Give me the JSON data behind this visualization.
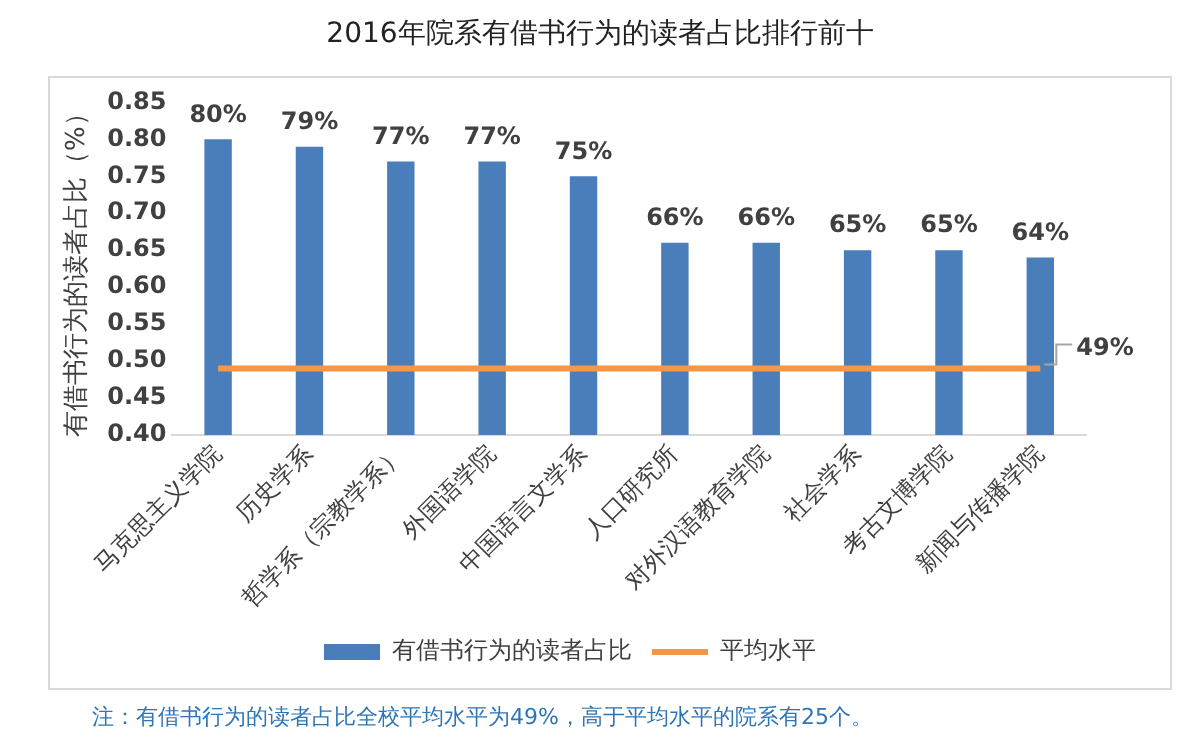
{
  "chart_data": {
    "type": "bar",
    "title": "2016年院系有借书行为的读者占比排行前十",
    "ylabel": "有借书行为的读者占比（%）",
    "categories": [
      "马克思主义学院",
      "历史学系",
      "哲学系（宗教学系）",
      "外国语学院",
      "中国语言文学系",
      "人口研究所",
      "对外汉语教育学院",
      "社会学系",
      "考古文博学院",
      "新闻与传播学院"
    ],
    "series": [
      {
        "name": "有借书行为的读者占比",
        "color": "#4a7ebb",
        "values": [
          0.8,
          0.79,
          0.77,
          0.77,
          0.75,
          0.66,
          0.66,
          0.65,
          0.65,
          0.64
        ],
        "value_labels": [
          "80%",
          "79%",
          "77%",
          "77%",
          "75%",
          "66%",
          "66%",
          "65%",
          "65%",
          "64%"
        ]
      },
      {
        "name": "平均水平",
        "type": "line",
        "color": "#f79646",
        "values": [
          0.49,
          0.49,
          0.49,
          0.49,
          0.49,
          0.49,
          0.49,
          0.49,
          0.49,
          0.49
        ],
        "value_labels": [
          null,
          null,
          null,
          null,
          null,
          null,
          null,
          null,
          null,
          "49%"
        ]
      }
    ],
    "ylim": [
      0.4,
      0.85
    ],
    "yticks": [
      {
        "value": 0.4,
        "label": "0.40"
      },
      {
        "value": 0.45,
        "label": "0.45"
      },
      {
        "value": 0.5,
        "label": "0.50"
      },
      {
        "value": 0.55,
        "label": "0.55"
      },
      {
        "value": 0.6,
        "label": "0.60"
      },
      {
        "value": 0.65,
        "label": "0.65"
      },
      {
        "value": 0.7,
        "label": "0.70"
      },
      {
        "value": 0.75,
        "label": "0.75"
      },
      {
        "value": 0.8,
        "label": "0.80"
      },
      {
        "value": 0.85,
        "label": "0.85"
      }
    ],
    "grid": false,
    "legend": "bottom",
    "marker": "none",
    "annotations": [
      "注：有借书行为的读者占比全校平均水平为49%，高于平均水平的院系有25个。"
    ]
  }
}
